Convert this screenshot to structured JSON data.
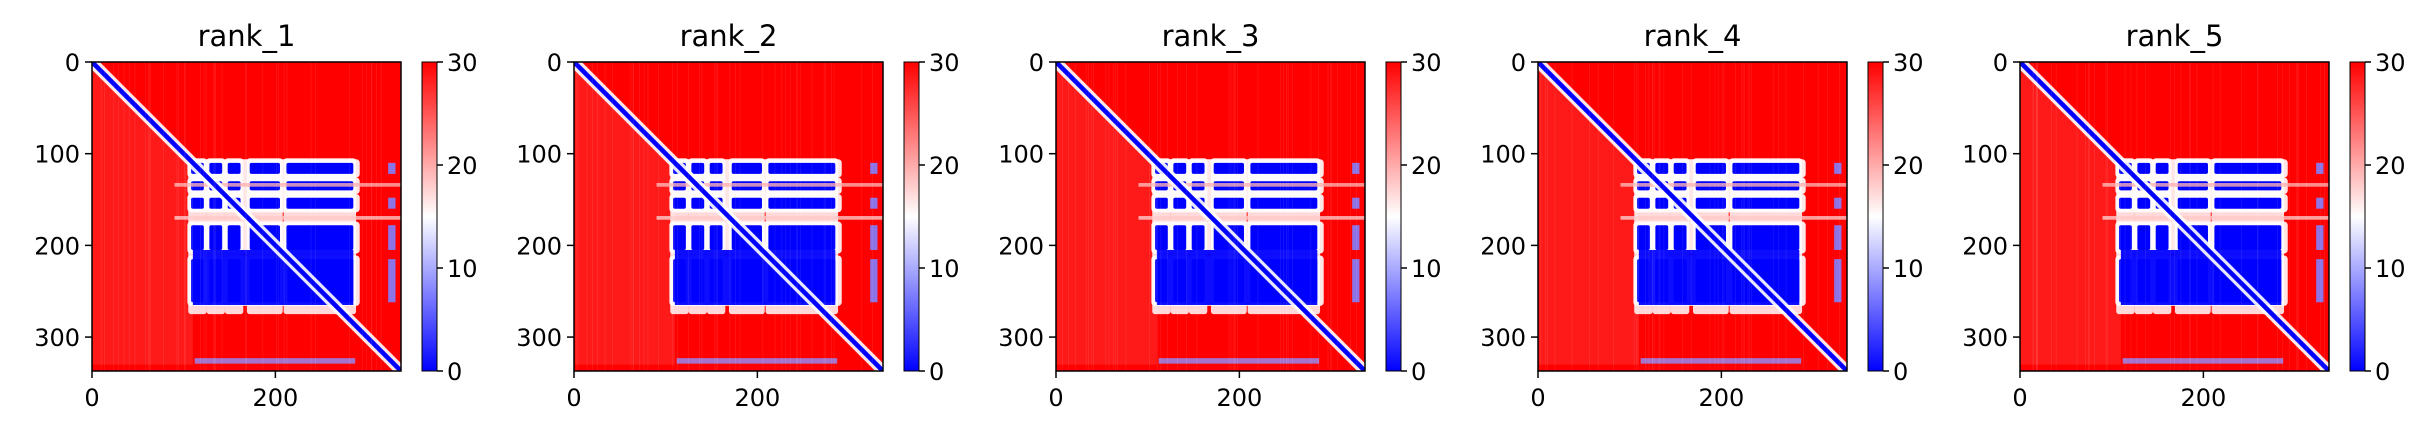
{
  "chart_data": {
    "type": "heatmap",
    "n_residues": 337,
    "xticks": [
      0,
      200
    ],
    "yticks": [
      0,
      100,
      200,
      300
    ],
    "colorbar": {
      "vmin": 0,
      "vmax": 30,
      "ticks": [
        0,
        10,
        20,
        30
      ]
    },
    "colormap": [
      "#0000ff",
      "#ffffff",
      "#ff0000"
    ],
    "axes_color": "#000000",
    "panels": [
      {
        "title": "rank_1"
      },
      {
        "title": "rank_2"
      },
      {
        "title": "rank_3"
      },
      {
        "title": "rank_4"
      },
      {
        "title": "rank_5"
      }
    ]
  }
}
